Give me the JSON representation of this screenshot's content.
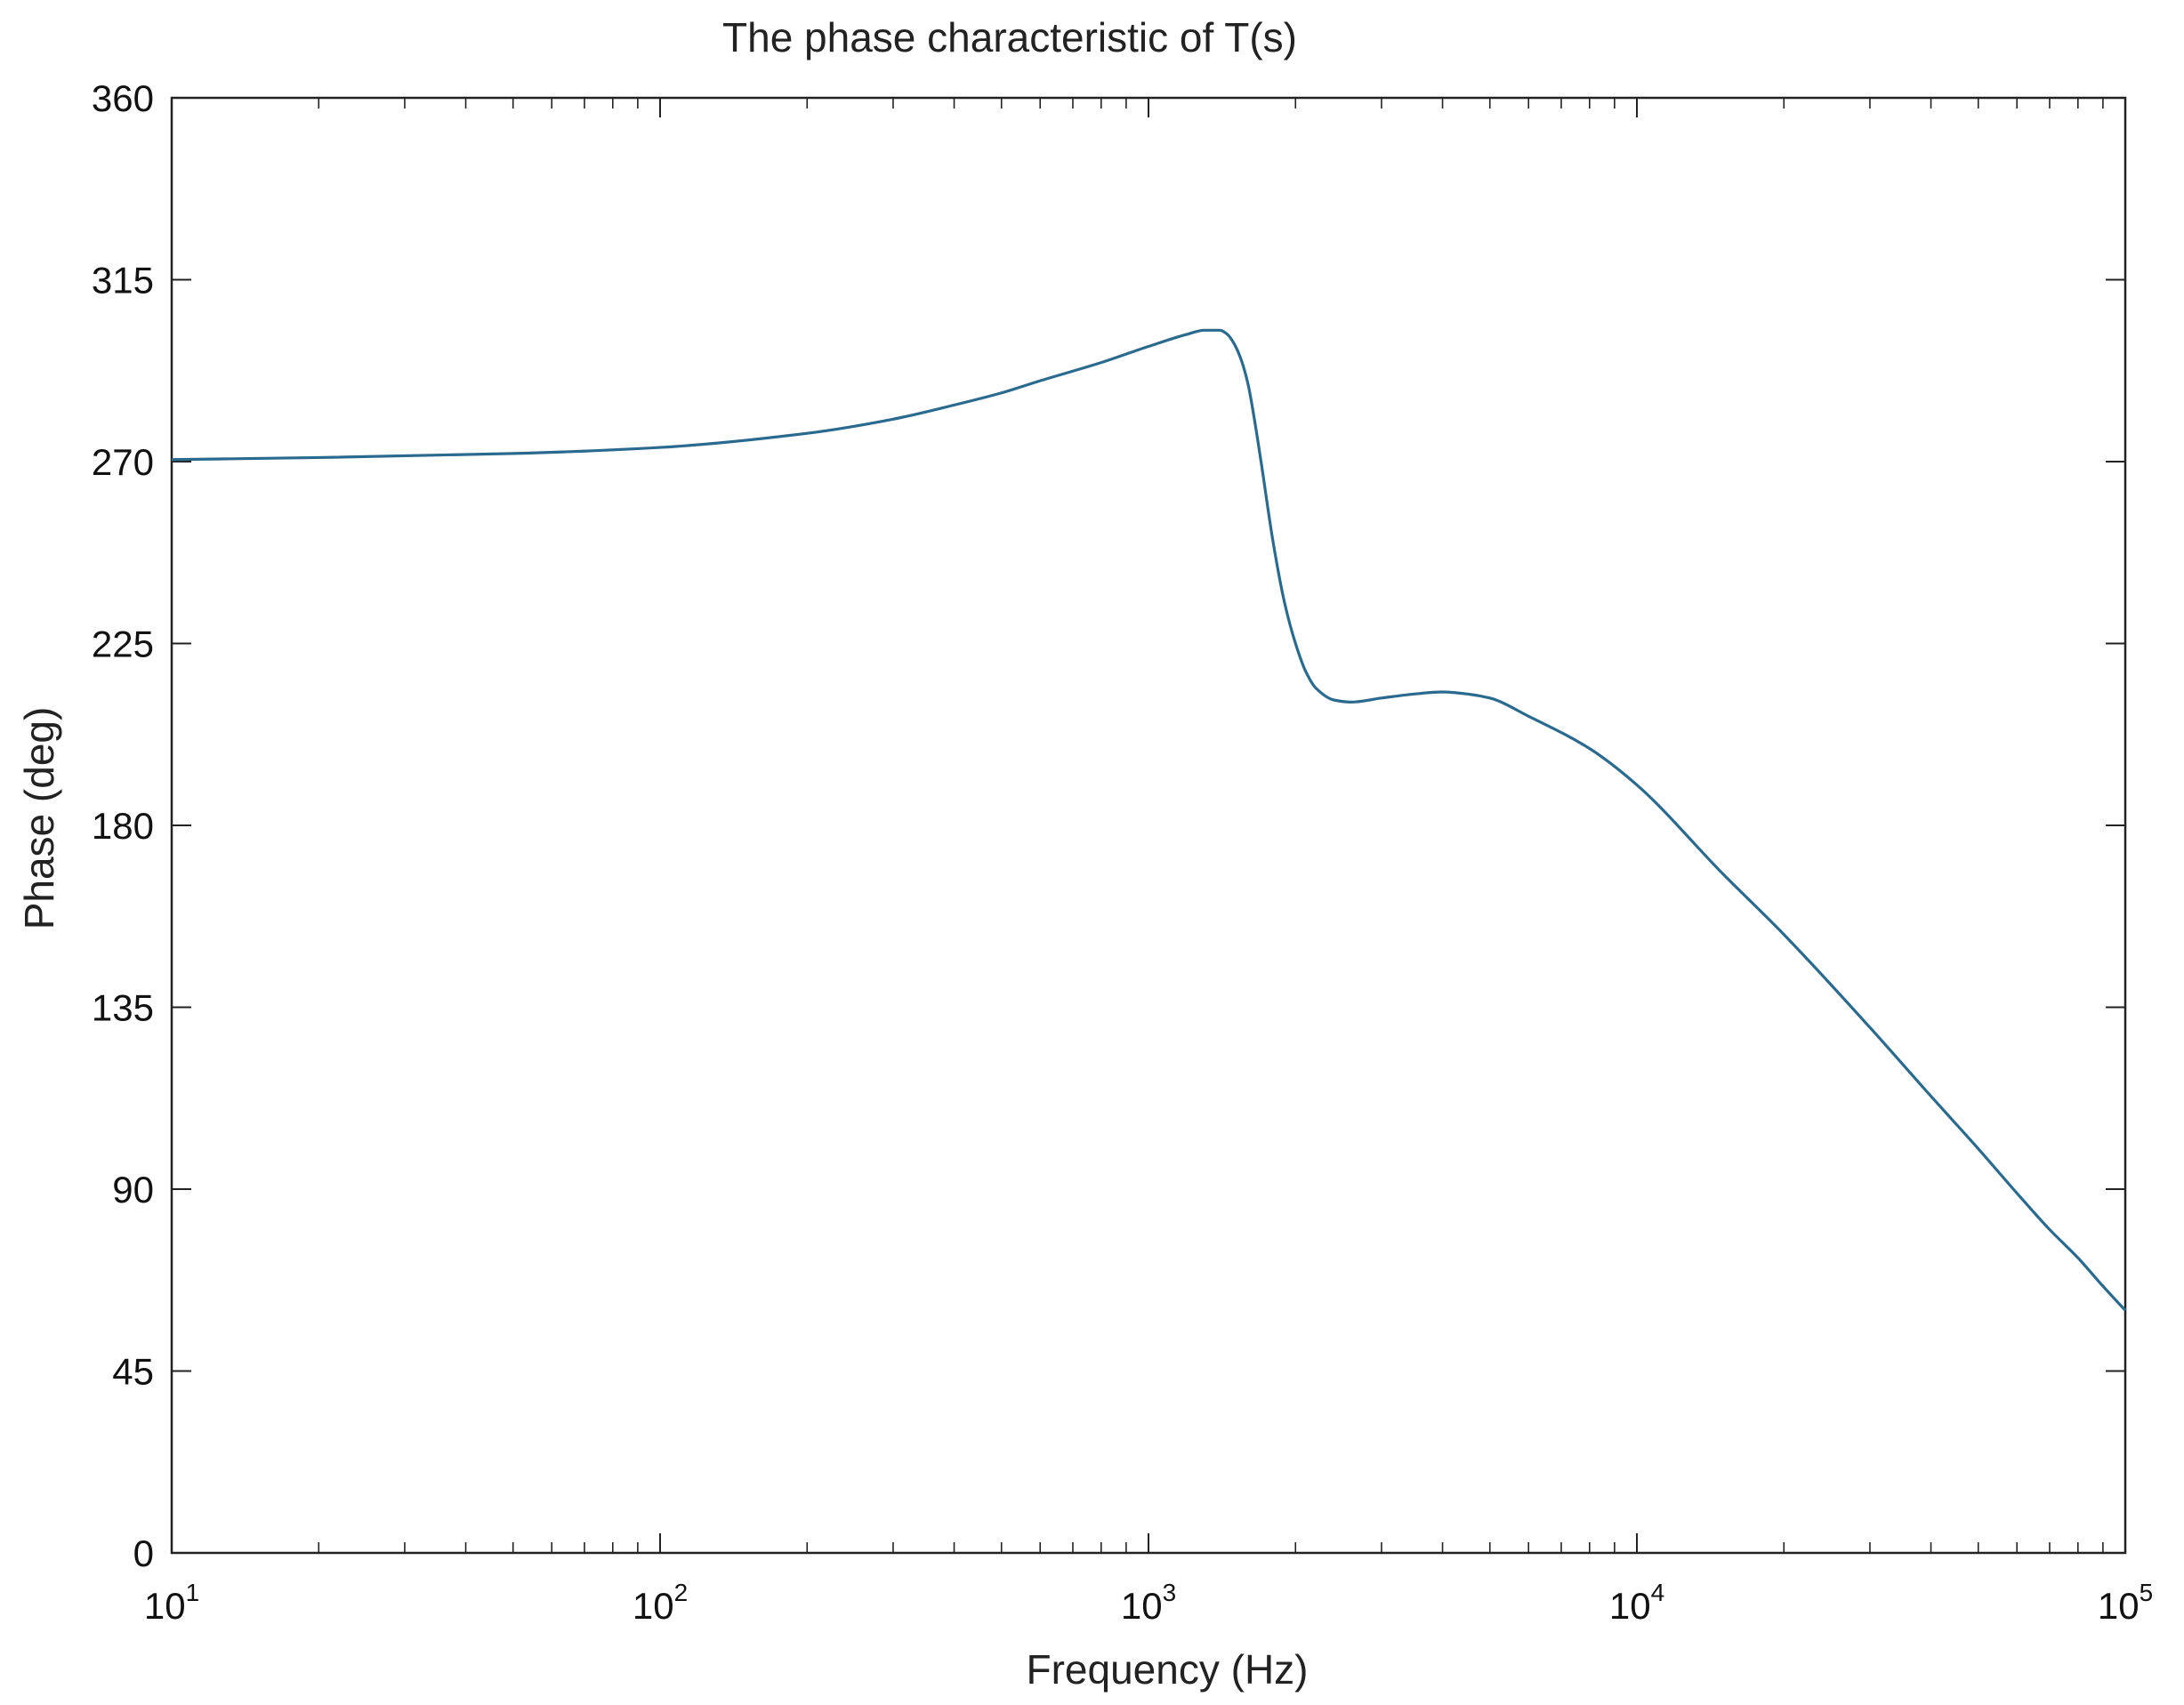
{
  "chart_data": {
    "type": "line",
    "title": "The phase characteristic of T(s)",
    "xlabel": "Frequency  (Hz)",
    "ylabel": "Phase (deg)",
    "x_scale": "log",
    "xlim": [
      10,
      100000
    ],
    "ylim": [
      0,
      360
    ],
    "grid": false,
    "x_ticks": [
      {
        "value": 10,
        "base": "10",
        "exp": "1"
      },
      {
        "value": 100,
        "base": "10",
        "exp": "2"
      },
      {
        "value": 1000,
        "base": "10",
        "exp": "3"
      },
      {
        "value": 10000,
        "base": "10",
        "exp": "4"
      },
      {
        "value": 100000,
        "base": "10",
        "exp": "5"
      }
    ],
    "y_ticks": [
      0,
      45,
      90,
      135,
      180,
      225,
      270,
      315,
      360
    ],
    "y_tick_labels": [
      "0",
      "45",
      "90",
      "135",
      "180",
      "225",
      "270",
      "315",
      "360"
    ],
    "series": [
      {
        "color": "#2b6a8f",
        "x": [
          10,
          20,
          50,
          100,
          200,
          300,
          400,
          500,
          600,
          800,
          1000,
          1200,
          1300,
          1400,
          1450,
          1500,
          1550,
          1600,
          1650,
          1700,
          1800,
          1900,
          2000,
          2100,
          2200,
          2400,
          2600,
          3000,
          3500,
          4000,
          4500,
          5000,
          6000,
          8000,
          10000,
          15000,
          20000,
          30000,
          40000,
          50000,
          60000,
          70000,
          80000,
          90000,
          100000
        ],
        "y": [
          270.5,
          271,
          272,
          273.5,
          277,
          280.5,
          284,
          287,
          290,
          294.5,
          298.5,
          301.5,
          302.5,
          302.5,
          301.5,
          299,
          295,
          289,
          280,
          270,
          250,
          235,
          225,
          218,
          214,
          211,
          210.5,
          211.5,
          212.5,
          213,
          212.5,
          211.5,
          207,
          199,
          190,
          168,
          153,
          130,
          113,
          100,
          89,
          80,
          73,
          66,
          60
        ]
      }
    ]
  }
}
